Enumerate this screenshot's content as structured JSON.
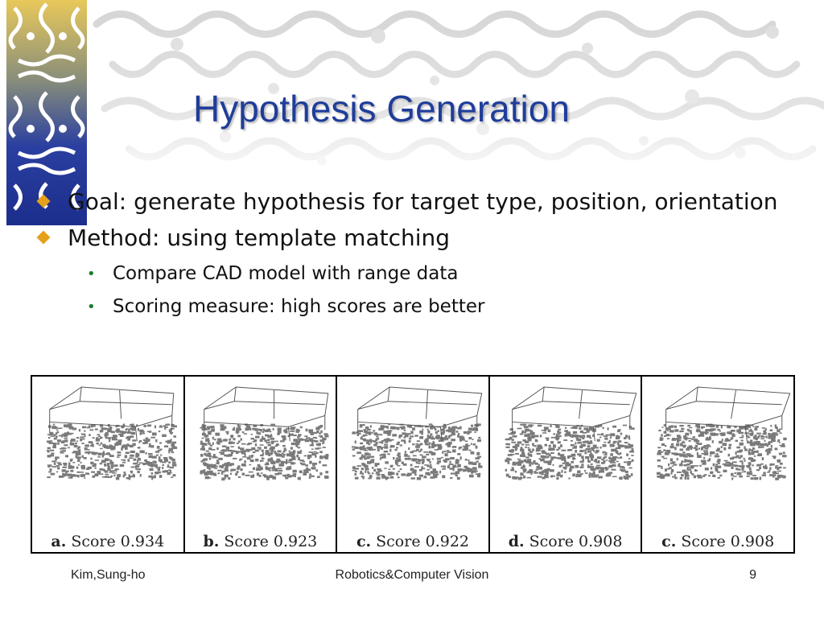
{
  "slide": {
    "title": "Hypothesis Generation",
    "bullets": [
      {
        "text": "Goal: generate hypothesis for target type, position, orientation",
        "sub": []
      },
      {
        "text": "Method: using template matching",
        "sub": [
          "Compare CAD model with range data",
          "Scoring measure: high scores are better"
        ]
      }
    ]
  },
  "figure": {
    "panels": [
      {
        "letter": "a.",
        "score": "Score 0.934"
      },
      {
        "letter": "b.",
        "score": "Score 0.923"
      },
      {
        "letter": "c.",
        "score": "Score 0.922"
      },
      {
        "letter": "d.",
        "score": "Score 0.908"
      },
      {
        "letter": "c.",
        "score": "Score 0.908"
      }
    ]
  },
  "footer": {
    "author": "Kim,Sung-ho",
    "course": "Robotics&Computer Vision",
    "page": "9"
  },
  "colors": {
    "title": "#1f3d9a",
    "bullet_diamond": "#e6a11a",
    "sub_bullet": "#1a7a2a"
  },
  "icons": {
    "level1_bullet": "diamond-bullet-icon",
    "level2_bullet": "dot-bullet-icon"
  }
}
